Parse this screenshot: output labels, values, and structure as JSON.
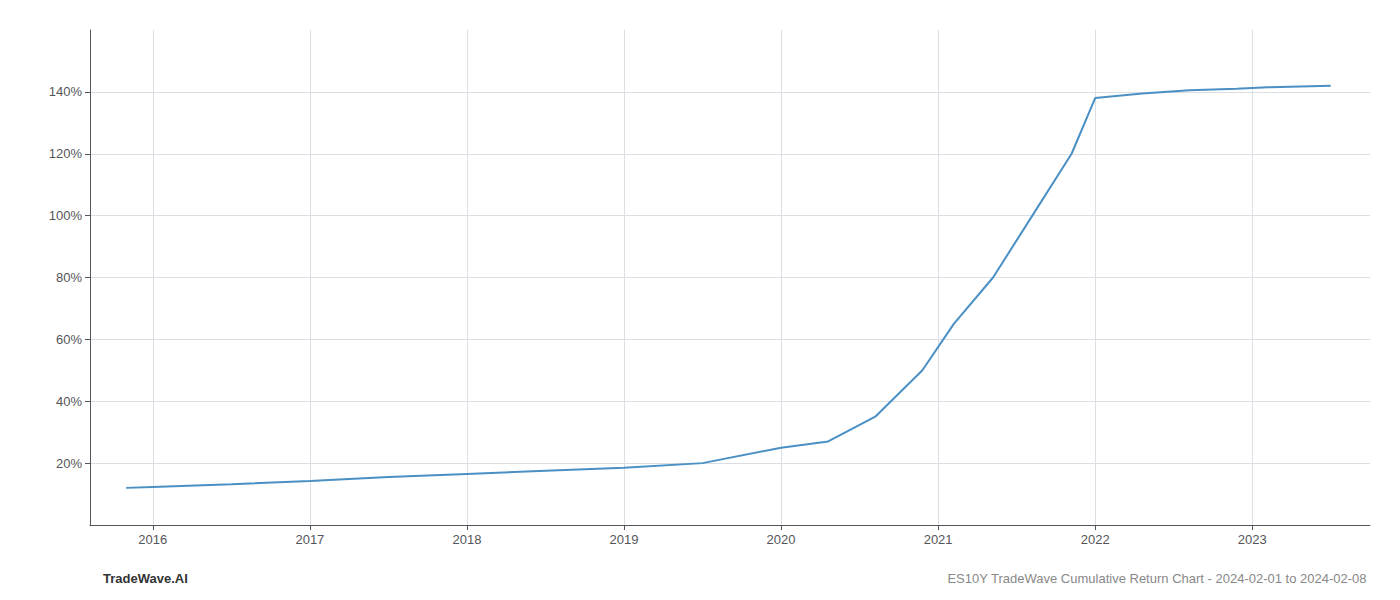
{
  "chart_data": {
    "type": "line",
    "x": [
      2015.83,
      2016.0,
      2016.5,
      2017.0,
      2017.5,
      2018.0,
      2018.5,
      2019.0,
      2019.5,
      2020.0,
      2020.3,
      2020.6,
      2020.9,
      2021.1,
      2021.35,
      2021.6,
      2021.85,
      2022.0,
      2022.3,
      2022.6,
      2022.9,
      2023.1,
      2023.5
    ],
    "values": [
      12.0,
      12.3,
      13.2,
      14.2,
      15.5,
      16.5,
      17.5,
      18.5,
      20.0,
      25.0,
      27.0,
      35.0,
      50.0,
      65.0,
      80.0,
      100.0,
      120.0,
      138.0,
      139.5,
      140.5,
      141.0,
      141.5,
      142.0
    ],
    "color": "#4a90c4",
    "xlim": [
      2015.6,
      2023.75
    ],
    "ylim": [
      0,
      160
    ],
    "xticks": [
      2016,
      2017,
      2018,
      2019,
      2020,
      2021,
      2022,
      2023
    ],
    "yticks": [
      {
        "value": 20,
        "label": "20%"
      },
      {
        "value": 40,
        "label": "40%"
      },
      {
        "value": 60,
        "label": "60%"
      },
      {
        "value": 80,
        "label": "80%"
      },
      {
        "value": 100,
        "label": "100%"
      },
      {
        "value": 120,
        "label": "120%"
      },
      {
        "value": 140,
        "label": "140%"
      }
    ],
    "grid": true,
    "annotations": [
      "TradeWave.AI",
      "ES10Y TradeWave Cumulative Return Chart - 2024-02-01 to 2024-02-08"
    ]
  }
}
